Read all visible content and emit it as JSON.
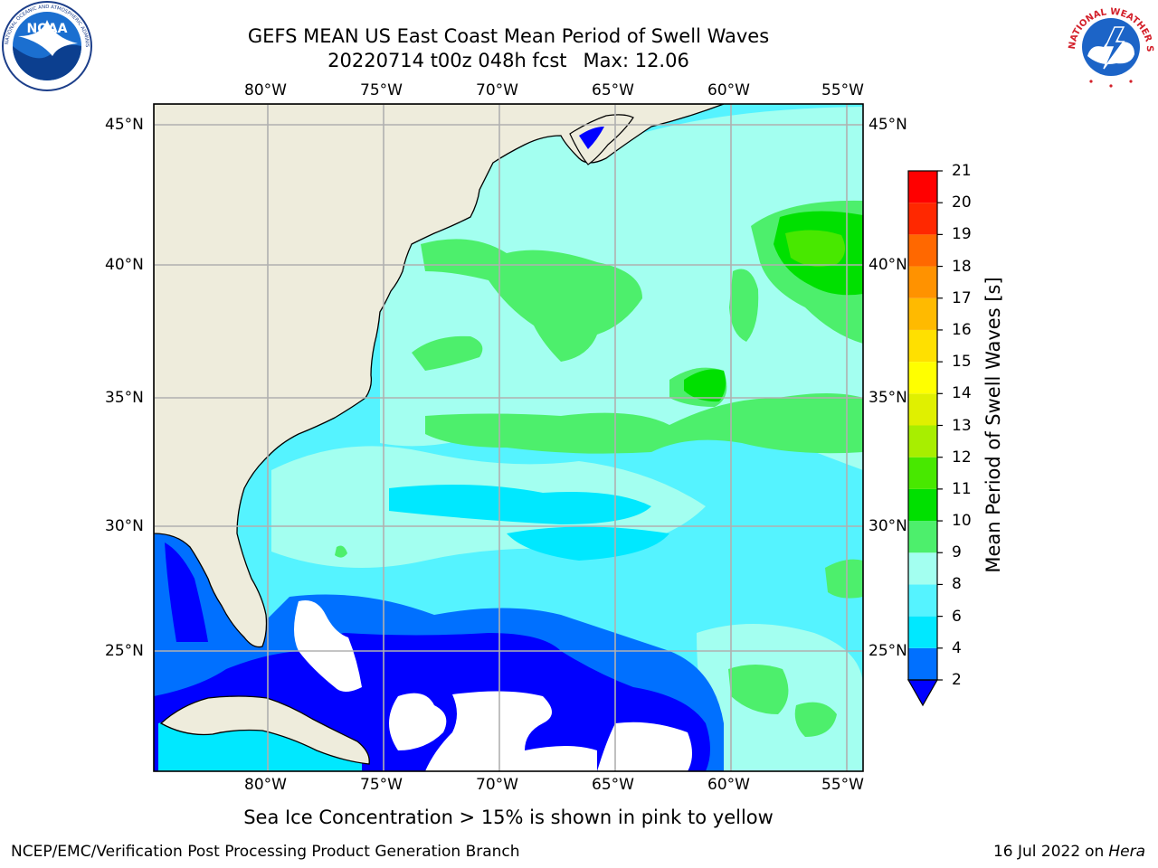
{
  "title": {
    "line1": "GEFS MEAN US East Coast Mean Period of Swell Waves",
    "line2_run": "20220714 t00z 048h fcst",
    "line2_max": "Max: 12.06"
  },
  "map": {
    "lon_labels": [
      "80°W",
      "75°W",
      "70°W",
      "65°W",
      "60°W",
      "55°W"
    ],
    "lat_labels": [
      "45°N",
      "40°N",
      "35°N",
      "30°N",
      "25°N"
    ],
    "colors": {
      "land": "#eeecdc",
      "no_data": "#ffffff",
      "grid": "#b0b0b0"
    }
  },
  "colorbar": {
    "label": "Mean Period of Swell Waves [s]",
    "ticks": [
      "2",
      "4",
      "6",
      "8",
      "9",
      "10",
      "11",
      "12",
      "13",
      "14",
      "15",
      "16",
      "17",
      "18",
      "19",
      "20",
      "21"
    ],
    "colors": [
      "#0000ff",
      "#0070ff",
      "#00e8ff",
      "#55f3ff",
      "#a3fff0",
      "#4def6c",
      "#00e000",
      "#48e800",
      "#a8ee00",
      "#e0f000",
      "#ffff00",
      "#ffe000",
      "#ffba00",
      "#ff9200",
      "#ff6800",
      "#ff2800",
      "#ff0000"
    ]
  },
  "note": "Sea Ice Concentration > 15% is shown in pink to yellow",
  "footer": {
    "left": "NCEP/EMC/Verification Post Processing Product Generation Branch",
    "date": "16 Jul 2022",
    "on": "on",
    "host": "Hera"
  },
  "logos": {
    "noaa_text": "NOAA",
    "noaa_ring": "NATIONAL OCEANIC AND ATMOSPHERIC ADMINISTRATION · U.S. DEPARTMENT OF COMMERCE",
    "nws_ring": "NATIONAL WEATHER SERVICE"
  }
}
